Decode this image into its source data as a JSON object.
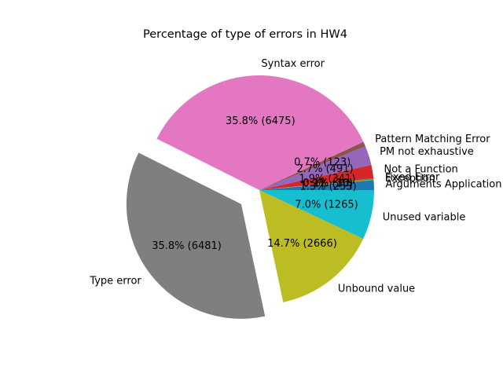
{
  "chart_data": {
    "type": "pie",
    "title": "Percentage of type of errors in HW4",
    "slices": [
      {
        "label": "Arguments Application",
        "value": 253,
        "pct_label": "1.3% (253)",
        "color": "#1f77b4",
        "explode": false
      },
      {
        "label": "Exception",
        "value": 16,
        "pct_label": "0.1% (16)",
        "color": "#ff7f0e",
        "explode": false
      },
      {
        "label": "Fixed Error",
        "value": 30,
        "pct_label": "0.2% (30)",
        "color": "#2ca02c",
        "explode": false
      },
      {
        "label": "Not a Function",
        "value": 341,
        "pct_label": "1.9% (341)",
        "color": "#d62728",
        "explode": false
      },
      {
        "label": "PM not exhaustive",
        "value": 491,
        "pct_label": "2.7% (491)",
        "color": "#9467bd",
        "explode": false
      },
      {
        "label": "Pattern Matching Error",
        "value": 123,
        "pct_label": "0.7% (123)",
        "color": "#8c564b",
        "explode": false
      },
      {
        "label": "Syntax error",
        "value": 6475,
        "pct_label": "35.8% (6475)",
        "color": "#e377c2",
        "explode": false
      },
      {
        "label": "Type error",
        "value": 6481,
        "pct_label": "35.8% (6481)",
        "color": "#7f7f7f",
        "explode": true
      },
      {
        "label": "Unbound value",
        "value": 2666,
        "pct_label": "14.7% (2666)",
        "color": "#bcbd22",
        "explode": false
      },
      {
        "label": "Unused variable",
        "value": 1265,
        "pct_label": "7.0% (1265)",
        "color": "#17becf",
        "explode": false
      }
    ],
    "start_angle_deg": 0,
    "direction": "counterclockwise",
    "legend": "none"
  }
}
